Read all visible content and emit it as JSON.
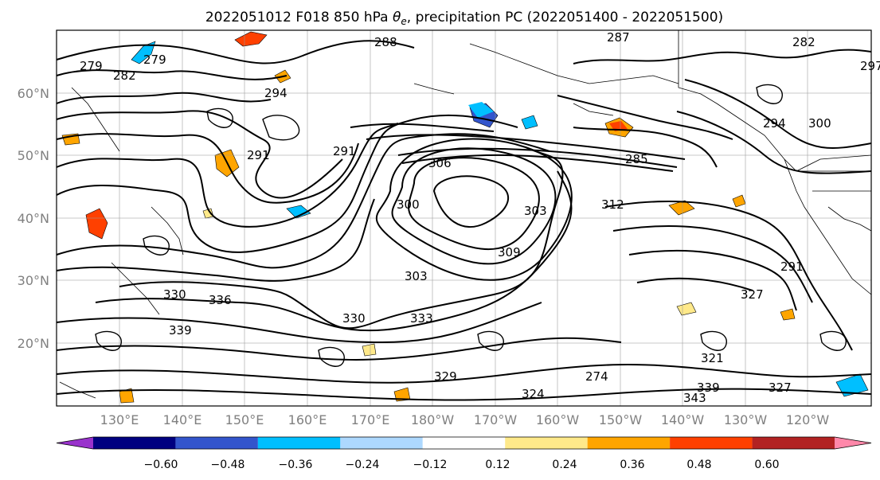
{
  "title": {
    "prefix": "2022051012 F018 850 hPa ",
    "theta": "θ",
    "sub": "e",
    "suffix": ", precipitation PC (2022051400 - 2022051500)"
  },
  "latitude_labels": [
    "60°N",
    "50°N",
    "40°N",
    "30°N",
    "20°N"
  ],
  "longitude_labels": [
    "130°E",
    "140°E",
    "150°E",
    "160°E",
    "170°E",
    "180°W",
    "170°W",
    "160°W",
    "150°W",
    "140°W",
    "130°W",
    "120°W"
  ],
  "colorbar": {
    "colors": [
      "#9932cc",
      "#000080",
      "#3355cc",
      "#00bfff",
      "#add8ff",
      "#ffffff",
      "#ffe98a",
      "#ffa500",
      "#ff4000",
      "#b22222",
      "#ff88aa"
    ],
    "tick_labels": [
      "−0.60",
      "−0.48",
      "−0.36",
      "−0.24",
      "−0.12",
      "0.12",
      "0.24",
      "0.36",
      "0.48",
      "0.60"
    ]
  },
  "contour_labels": [
    "288",
    "287",
    "282",
    "282",
    "279",
    "294",
    "291",
    "291",
    "300",
    "306",
    "303",
    "309",
    "285",
    "294",
    "300",
    "291",
    "303",
    "336",
    "330",
    "339",
    "333",
    "330",
    "327",
    "321",
    "327",
    "343",
    "339",
    "324",
    "329",
    "312",
    "274",
    "297",
    "279"
  ],
  "colors": {
    "map_text": "#808080",
    "contour": "#000000",
    "precip_positive": "#ffa500",
    "precip_negative": "#00bfff"
  }
}
